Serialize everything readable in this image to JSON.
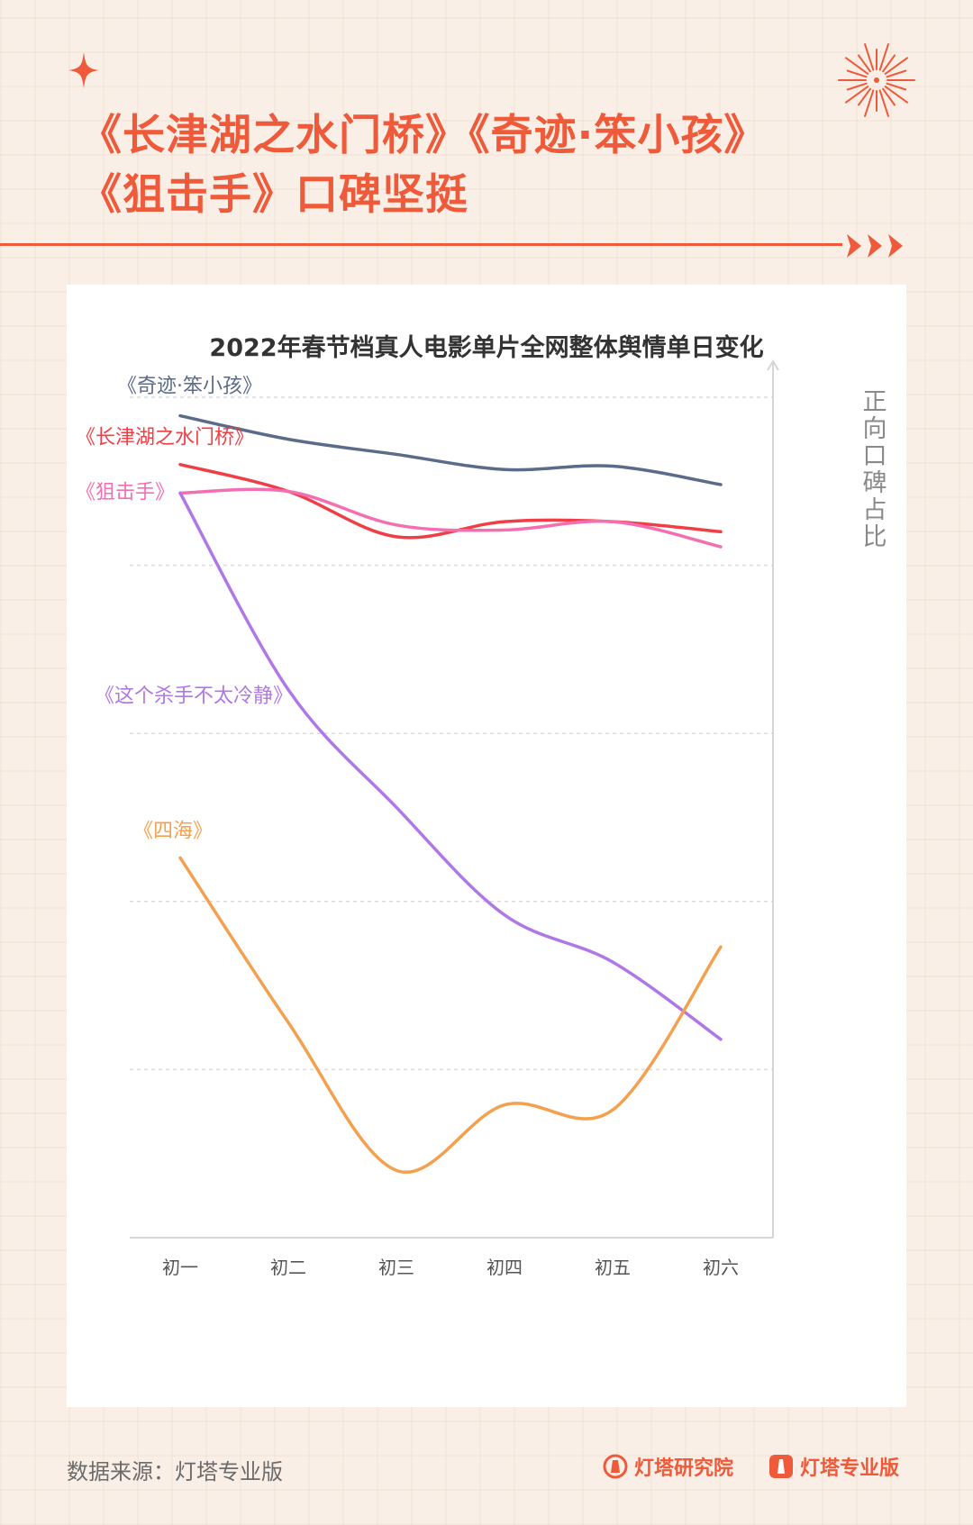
{
  "title": {
    "line1": "《长津湖之水门桥》《奇迹·笨小孩》",
    "line2": "《狙击手》口碑坚挺"
  },
  "colors": {
    "accent": "#ee5a3a",
    "background": "#f9efe6"
  },
  "chart_data": {
    "type": "line",
    "title": "2022年春节档真人电影单片全网整体舆情单日变化",
    "ylabel": "正向口碑占比",
    "xlabel": "",
    "categories": [
      "初一",
      "初二",
      "初三",
      "初四",
      "初五",
      "初六"
    ],
    "ylim": [
      0,
      5
    ],
    "grid": true,
    "series": [
      {
        "name": "《奇迹·笨小孩》",
        "color": "#5b6b8a",
        "values": [
          4.89,
          4.75,
          4.66,
          4.57,
          4.59,
          4.48
        ]
      },
      {
        "name": "《长津湖之水门桥》",
        "color": "#ef3e45",
        "values": [
          4.6,
          4.44,
          4.17,
          4.26,
          4.26,
          4.2
        ]
      },
      {
        "name": "《狙击手》",
        "color": "#f46fb1",
        "values": [
          4.43,
          4.44,
          4.24,
          4.21,
          4.26,
          4.11
        ]
      },
      {
        "name": "《这个杀手不太冷静》",
        "color": "#b078e6",
        "values": [
          4.43,
          3.26,
          2.56,
          1.92,
          1.64,
          1.18
        ]
      },
      {
        "name": "《四海》",
        "color": "#f3a04f",
        "values": [
          2.26,
          1.28,
          0.4,
          0.79,
          0.76,
          1.73
        ]
      }
    ]
  },
  "footer": {
    "source": "数据来源：灯塔专业版",
    "brand1": "灯塔研究院",
    "brand2": "灯塔专业版"
  }
}
